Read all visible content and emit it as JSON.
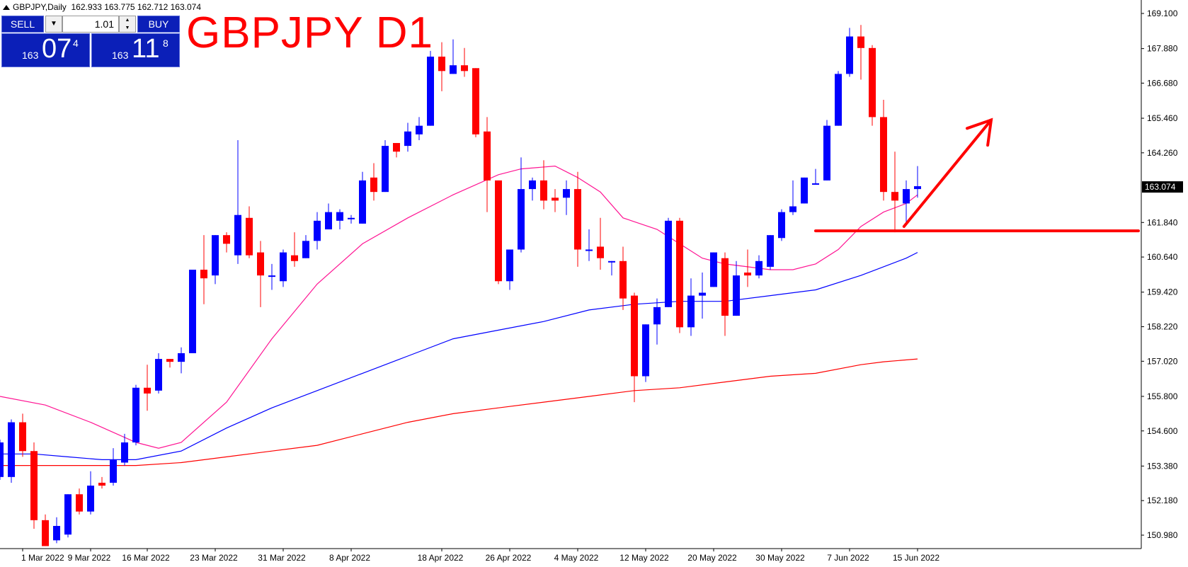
{
  "header": {
    "symbol_info": "GBPJPY,Daily",
    "ohlc": "162.933 163.775 162.712 163.074"
  },
  "title": "GBPJPY D1",
  "trade_panel": {
    "sell_label": "SELL",
    "buy_label": "BUY",
    "lot": "1.01",
    "sell_price_prefix": "163",
    "sell_price_main": "07",
    "sell_price_sup": "4",
    "buy_price_prefix": "163",
    "buy_price_main": "11",
    "buy_price_sup": "8"
  },
  "colors": {
    "bull": "#0000ff",
    "bear": "#ff0000",
    "ma_fast": "#ff1493",
    "ma_mid": "#0000ff",
    "ma_slow": "#ff0000",
    "annotation": "#ff0000",
    "current_price_bg": "#000000"
  },
  "chart_data": {
    "type": "candlestick",
    "symbol": "GBPJPY",
    "timeframe": "Daily",
    "ylim": [
      150.5,
      169.6
    ],
    "y_ticks": [
      "169.100",
      "167.880",
      "166.680",
      "165.460",
      "164.260",
      "163.074",
      "161.840",
      "160.640",
      "159.420",
      "158.220",
      "157.020",
      "155.800",
      "154.600",
      "153.380",
      "152.180",
      "150.980"
    ],
    "current_price": "163.074",
    "x_labels": [
      "1 Mar 2022",
      "9 Mar 2022",
      "16 Mar 2022",
      "23 Mar 2022",
      "31 Mar 2022",
      "8 Apr 2022",
      "18 Apr 2022",
      "26 Apr 2022",
      "4 May 2022",
      "12 May 2022",
      "20 May 2022",
      "30 May 2022",
      "7 Jun 2022",
      "15 Jun 2022"
    ],
    "x_label_index": [
      2,
      8,
      13,
      19,
      25,
      31,
      39,
      45,
      51,
      57,
      63,
      69,
      75,
      81
    ],
    "candles": [
      {
        "o": 153.0,
        "h": 154.3,
        "l": 152.9,
        "c": 154.2
      },
      {
        "o": 153.0,
        "h": 155.0,
        "l": 152.8,
        "c": 154.9
      },
      {
        "o": 154.9,
        "h": 155.2,
        "l": 153.7,
        "c": 153.9
      },
      {
        "o": 153.9,
        "h": 154.2,
        "l": 151.2,
        "c": 151.5
      },
      {
        "o": 151.5,
        "h": 151.7,
        "l": 150.6,
        "c": 150.6
      },
      {
        "o": 150.8,
        "h": 151.6,
        "l": 150.7,
        "c": 151.3
      },
      {
        "o": 151.0,
        "h": 152.4,
        "l": 150.9,
        "c": 152.4
      },
      {
        "o": 152.4,
        "h": 152.6,
        "l": 151.7,
        "c": 151.8
      },
      {
        "o": 151.8,
        "h": 153.2,
        "l": 151.7,
        "c": 152.7
      },
      {
        "o": 152.8,
        "h": 153.0,
        "l": 152.6,
        "c": 152.7
      },
      {
        "o": 152.8,
        "h": 154.0,
        "l": 152.7,
        "c": 153.6
      },
      {
        "o": 153.5,
        "h": 154.5,
        "l": 153.4,
        "c": 154.2
      },
      {
        "o": 154.2,
        "h": 156.2,
        "l": 154.1,
        "c": 156.1
      },
      {
        "o": 156.1,
        "h": 156.9,
        "l": 155.3,
        "c": 155.9
      },
      {
        "o": 156.0,
        "h": 157.3,
        "l": 155.9,
        "c": 157.1
      },
      {
        "o": 157.1,
        "h": 157.1,
        "l": 156.8,
        "c": 157.0
      },
      {
        "o": 157.0,
        "h": 157.5,
        "l": 156.6,
        "c": 157.3
      },
      {
        "o": 157.3,
        "h": 160.2,
        "l": 157.3,
        "c": 160.2
      },
      {
        "o": 160.2,
        "h": 161.4,
        "l": 159.0,
        "c": 159.9
      },
      {
        "o": 160.0,
        "h": 161.4,
        "l": 159.7,
        "c": 161.4
      },
      {
        "o": 161.4,
        "h": 161.5,
        "l": 160.8,
        "c": 161.1
      },
      {
        "o": 160.7,
        "h": 164.7,
        "l": 160.4,
        "c": 162.1
      },
      {
        "o": 162.0,
        "h": 162.4,
        "l": 160.6,
        "c": 160.7
      },
      {
        "o": 160.8,
        "h": 161.2,
        "l": 158.9,
        "c": 160.0
      },
      {
        "o": 160.0,
        "h": 160.4,
        "l": 159.5,
        "c": 160.0
      },
      {
        "o": 159.8,
        "h": 160.9,
        "l": 159.6,
        "c": 160.8
      },
      {
        "o": 160.7,
        "h": 161.5,
        "l": 160.3,
        "c": 160.5
      },
      {
        "o": 160.6,
        "h": 161.4,
        "l": 160.6,
        "c": 161.2
      },
      {
        "o": 161.2,
        "h": 162.2,
        "l": 160.9,
        "c": 161.9
      },
      {
        "o": 161.6,
        "h": 162.5,
        "l": 161.6,
        "c": 162.2
      },
      {
        "o": 161.9,
        "h": 162.3,
        "l": 161.6,
        "c": 162.2
      },
      {
        "o": 162.0,
        "h": 162.1,
        "l": 161.8,
        "c": 162.0
      },
      {
        "o": 161.8,
        "h": 163.6,
        "l": 161.8,
        "c": 163.3
      },
      {
        "o": 163.4,
        "h": 163.9,
        "l": 162.6,
        "c": 162.9
      },
      {
        "o": 162.9,
        "h": 164.7,
        "l": 162.9,
        "c": 164.5
      },
      {
        "o": 164.6,
        "h": 164.6,
        "l": 164.1,
        "c": 164.3
      },
      {
        "o": 164.5,
        "h": 165.3,
        "l": 164.3,
        "c": 165.0
      },
      {
        "o": 164.9,
        "h": 165.5,
        "l": 164.7,
        "c": 165.2
      },
      {
        "o": 165.2,
        "h": 167.8,
        "l": 165.2,
        "c": 167.6
      },
      {
        "o": 167.6,
        "h": 168.1,
        "l": 166.4,
        "c": 167.1
      },
      {
        "o": 167.0,
        "h": 168.2,
        "l": 167.0,
        "c": 167.3
      },
      {
        "o": 167.3,
        "h": 167.9,
        "l": 166.9,
        "c": 167.1
      },
      {
        "o": 167.2,
        "h": 167.2,
        "l": 164.8,
        "c": 164.9
      },
      {
        "o": 165.0,
        "h": 165.5,
        "l": 162.2,
        "c": 163.3
      },
      {
        "o": 163.3,
        "h": 163.3,
        "l": 159.7,
        "c": 159.8
      },
      {
        "o": 159.8,
        "h": 160.8,
        "l": 159.5,
        "c": 160.9
      },
      {
        "o": 160.9,
        "h": 164.1,
        "l": 160.8,
        "c": 163.0
      },
      {
        "o": 163.0,
        "h": 163.4,
        "l": 162.6,
        "c": 163.3
      },
      {
        "o": 163.3,
        "h": 164.0,
        "l": 162.3,
        "c": 162.6
      },
      {
        "o": 162.7,
        "h": 163.0,
        "l": 162.2,
        "c": 162.6
      },
      {
        "o": 162.7,
        "h": 163.3,
        "l": 162.1,
        "c": 163.0
      },
      {
        "o": 163.0,
        "h": 163.6,
        "l": 160.3,
        "c": 160.9
      },
      {
        "o": 160.9,
        "h": 161.6,
        "l": 160.5,
        "c": 160.9
      },
      {
        "o": 161.0,
        "h": 162.0,
        "l": 160.2,
        "c": 160.6
      },
      {
        "o": 160.5,
        "h": 160.5,
        "l": 160.0,
        "c": 160.5
      },
      {
        "o": 160.5,
        "h": 161.0,
        "l": 158.8,
        "c": 159.2
      },
      {
        "o": 159.3,
        "h": 159.4,
        "l": 155.6,
        "c": 156.5
      },
      {
        "o": 156.5,
        "h": 158.3,
        "l": 156.3,
        "c": 158.3
      },
      {
        "o": 158.3,
        "h": 159.2,
        "l": 157.6,
        "c": 158.9
      },
      {
        "o": 158.9,
        "h": 162.0,
        "l": 158.9,
        "c": 161.9
      },
      {
        "o": 161.9,
        "h": 162.0,
        "l": 158.0,
        "c": 158.2
      },
      {
        "o": 158.2,
        "h": 159.9,
        "l": 157.9,
        "c": 159.3
      },
      {
        "o": 159.3,
        "h": 160.1,
        "l": 158.5,
        "c": 159.4
      },
      {
        "o": 159.6,
        "h": 160.8,
        "l": 159.6,
        "c": 160.8
      },
      {
        "o": 160.6,
        "h": 160.8,
        "l": 157.9,
        "c": 158.6
      },
      {
        "o": 158.6,
        "h": 160.5,
        "l": 158.6,
        "c": 160.0
      },
      {
        "o": 160.1,
        "h": 160.9,
        "l": 159.6,
        "c": 160.0
      },
      {
        "o": 160.0,
        "h": 160.7,
        "l": 159.9,
        "c": 160.5
      },
      {
        "o": 160.3,
        "h": 161.4,
        "l": 160.2,
        "c": 161.4
      },
      {
        "o": 161.3,
        "h": 162.3,
        "l": 161.2,
        "c": 162.2
      },
      {
        "o": 162.2,
        "h": 163.3,
        "l": 162.1,
        "c": 162.4
      },
      {
        "o": 162.5,
        "h": 163.4,
        "l": 162.5,
        "c": 163.4
      },
      {
        "o": 163.2,
        "h": 163.7,
        "l": 163.2,
        "c": 163.2
      },
      {
        "o": 163.3,
        "h": 165.4,
        "l": 163.3,
        "c": 165.2
      },
      {
        "o": 165.2,
        "h": 167.1,
        "l": 165.2,
        "c": 167.0
      },
      {
        "o": 167.0,
        "h": 168.6,
        "l": 166.9,
        "c": 168.3
      },
      {
        "o": 168.3,
        "h": 168.7,
        "l": 166.8,
        "c": 167.9
      },
      {
        "o": 167.9,
        "h": 168.0,
        "l": 165.2,
        "c": 165.5
      },
      {
        "o": 165.5,
        "h": 166.1,
        "l": 162.6,
        "c": 162.9
      },
      {
        "o": 162.9,
        "h": 164.3,
        "l": 161.5,
        "c": 162.6
      },
      {
        "o": 162.5,
        "h": 163.3,
        "l": 161.8,
        "c": 163.0
      },
      {
        "o": 163.0,
        "h": 163.8,
        "l": 162.7,
        "c": 163.1
      }
    ],
    "ma_fast": [
      [
        0,
        155.8
      ],
      [
        4,
        155.5
      ],
      [
        8,
        154.9
      ],
      [
        12,
        154.2
      ],
      [
        14,
        154.0
      ],
      [
        16,
        154.2
      ],
      [
        20,
        155.6
      ],
      [
        24,
        157.8
      ],
      [
        28,
        159.7
      ],
      [
        32,
        161.1
      ],
      [
        36,
        162.0
      ],
      [
        40,
        162.8
      ],
      [
        44,
        163.5
      ],
      [
        46,
        163.7
      ],
      [
        49,
        163.8
      ],
      [
        51,
        163.4
      ],
      [
        53,
        162.9
      ],
      [
        55,
        162.0
      ],
      [
        58,
        161.6
      ],
      [
        60,
        161.1
      ],
      [
        62,
        160.6
      ],
      [
        64,
        160.4
      ],
      [
        66,
        160.3
      ],
      [
        68,
        160.2
      ],
      [
        70,
        160.2
      ],
      [
        72,
        160.4
      ],
      [
        74,
        160.9
      ],
      [
        76,
        161.7
      ],
      [
        78,
        162.2
      ],
      [
        80,
        162.5
      ],
      [
        81,
        162.8
      ]
    ],
    "ma_mid": [
      [
        0,
        153.8
      ],
      [
        3,
        153.8
      ],
      [
        6,
        153.7
      ],
      [
        9,
        153.6
      ],
      [
        12,
        153.6
      ],
      [
        16,
        153.9
      ],
      [
        20,
        154.7
      ],
      [
        24,
        155.4
      ],
      [
        28,
        156.0
      ],
      [
        32,
        156.6
      ],
      [
        36,
        157.2
      ],
      [
        40,
        157.8
      ],
      [
        44,
        158.1
      ],
      [
        48,
        158.4
      ],
      [
        52,
        158.8
      ],
      [
        56,
        159.0
      ],
      [
        60,
        159.1
      ],
      [
        64,
        159.1
      ],
      [
        68,
        159.3
      ],
      [
        72,
        159.5
      ],
      [
        76,
        160.0
      ],
      [
        80,
        160.6
      ],
      [
        81,
        160.8
      ]
    ],
    "ma_slow": [
      [
        0,
        153.4
      ],
      [
        6,
        153.4
      ],
      [
        12,
        153.4
      ],
      [
        16,
        153.5
      ],
      [
        20,
        153.7
      ],
      [
        24,
        153.9
      ],
      [
        28,
        154.1
      ],
      [
        32,
        154.5
      ],
      [
        36,
        154.9
      ],
      [
        40,
        155.2
      ],
      [
        44,
        155.4
      ],
      [
        48,
        155.6
      ],
      [
        52,
        155.8
      ],
      [
        56,
        156.0
      ],
      [
        60,
        156.1
      ],
      [
        64,
        156.3
      ],
      [
        68,
        156.5
      ],
      [
        72,
        156.6
      ],
      [
        76,
        156.9
      ],
      [
        78,
        157.0
      ],
      [
        81,
        157.1
      ]
    ],
    "support_level": 161.55,
    "support_from_index": 72,
    "arrow": {
      "from_index": 79.8,
      "from_price": 161.7,
      "to_index": 87.5,
      "to_price": 165.4
    }
  }
}
